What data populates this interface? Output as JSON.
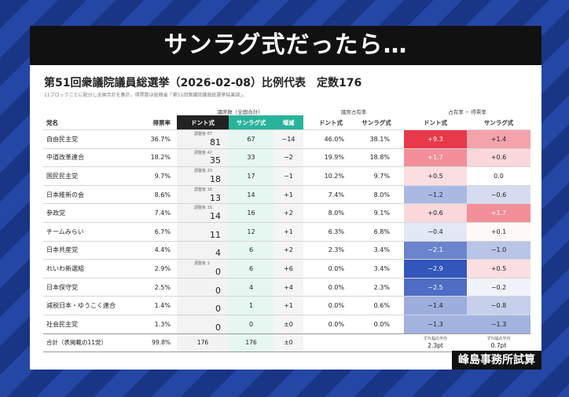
{
  "headline": "サンラグ式だったら…",
  "title": "第51回衆議院議員総選挙（2026-02-08）比例代表　定数176",
  "note": "11ブロックごとに配分し全国合計を集計。得票数は総務省「第51回衆議院議員総選挙結果調」。",
  "group_headers": {
    "seats": "議席数（全国合計）",
    "share": "議席占有率",
    "diff": "占有率 − 得票率"
  },
  "columns": {
    "party": "党名",
    "vote": "得票率",
    "dhondt": "ドント式",
    "sainte": "サンラグ式",
    "change": "増減",
    "share_dhondt": "ドント式",
    "share_sainte": "サンラグ式",
    "diff_dhondt": "ドント式",
    "diff_sainte": "サンラグ式"
  },
  "rows": [
    {
      "party": "自由民主党",
      "vote": "36.7%",
      "adj": "調整後 67",
      "dhondt": "81",
      "sainte": "67",
      "change": "−14",
      "share_d": "46.0%",
      "share_s": "38.1%",
      "diff_d": "+9.3",
      "diff_s": "+1.4",
      "diff_d_val": 9.3,
      "diff_s_val": 1.4
    },
    {
      "party": "中道改革連合",
      "vote": "18.2%",
      "adj": "調整後 42",
      "dhondt": "35",
      "sainte": "33",
      "change": "−2",
      "share_d": "19.9%",
      "share_s": "18.8%",
      "diff_d": "+1.7",
      "diff_s": "+0.6",
      "diff_d_val": 1.7,
      "diff_s_val": 0.6
    },
    {
      "party": "国民民主党",
      "vote": "9.7%",
      "adj": "調整後 20",
      "dhondt": "18",
      "sainte": "17",
      "change": "−1",
      "share_d": "10.2%",
      "share_s": "9.7%",
      "diff_d": "+0.5",
      "diff_s": "0.0",
      "diff_d_val": 0.5,
      "diff_s_val": 0.0
    },
    {
      "party": "日本維新の会",
      "vote": "8.6%",
      "adj": "調整後 16",
      "dhondt": "13",
      "sainte": "14",
      "change": "+1",
      "share_d": "7.4%",
      "share_s": "8.0%",
      "diff_d": "−1.2",
      "diff_s": "−0.6",
      "diff_d_val": -1.2,
      "diff_s_val": -0.6
    },
    {
      "party": "参政党",
      "vote": "7.4%",
      "adj": "調整後 15",
      "dhondt": "14",
      "sainte": "16",
      "change": "+2",
      "share_d": "8.0%",
      "share_s": "9.1%",
      "diff_d": "+0.6",
      "diff_s": "+1.7",
      "diff_d_val": 0.6,
      "diff_s_val": 1.7
    },
    {
      "party": "チームみらい",
      "vote": "6.7%",
      "adj": "",
      "dhondt": "11",
      "sainte": "12",
      "change": "+1",
      "share_d": "6.3%",
      "share_s": "6.8%",
      "diff_d": "−0.4",
      "diff_s": "+0.1",
      "diff_d_val": -0.4,
      "diff_s_val": 0.1
    },
    {
      "party": "日本共産党",
      "vote": "4.4%",
      "adj": "",
      "dhondt": "4",
      "sainte": "6",
      "change": "+2",
      "share_d": "2.3%",
      "share_s": "3.4%",
      "diff_d": "−2.1",
      "diff_s": "−1.0",
      "diff_d_val": -2.1,
      "diff_s_val": -1.0
    },
    {
      "party": "れいわ新選組",
      "vote": "2.9%",
      "adj": "調整後 1",
      "dhondt": "0",
      "sainte": "6",
      "change": "+6",
      "share_d": "0.0%",
      "share_s": "3.4%",
      "diff_d": "−2.9",
      "diff_s": "+0.5",
      "diff_d_val": -2.9,
      "diff_s_val": 0.5
    },
    {
      "party": "日本保守党",
      "vote": "2.5%",
      "adj": "",
      "dhondt": "0",
      "sainte": "4",
      "change": "+4",
      "share_d": "0.0%",
      "share_s": "2.3%",
      "diff_d": "−2.5",
      "diff_s": "−0.2",
      "diff_d_val": -2.5,
      "diff_s_val": -0.2
    },
    {
      "party": "減税日本・ゆうこく連合",
      "vote": "1.4%",
      "adj": "",
      "dhondt": "0",
      "sainte": "1",
      "change": "+1",
      "share_d": "0.0%",
      "share_s": "0.6%",
      "diff_d": "−1.4",
      "diff_s": "−0.8",
      "diff_d_val": -1.4,
      "diff_s_val": -0.8
    },
    {
      "party": "社会民主党",
      "vote": "1.3%",
      "adj": "",
      "dhondt": "0",
      "sainte": "0",
      "change": "±0",
      "share_d": "0.0%",
      "share_s": "0.0%",
      "diff_d": "−1.3",
      "diff_s": "−1.3",
      "diff_d_val": -1.3,
      "diff_s_val": -1.3
    }
  ],
  "total": {
    "label": "合計（表掲載の11党）",
    "vote": "99.8%",
    "dhondt": "176",
    "sainte": "176",
    "change": "±0",
    "avg_label": "ずれ幅の平均",
    "avg_d": "2.3pt",
    "avg_s": "0.7pt"
  },
  "credit": "峰島事務所試算",
  "colors": {
    "positive": "#e8394a",
    "negative": "#2b50b8",
    "teal": "#29b39a"
  }
}
